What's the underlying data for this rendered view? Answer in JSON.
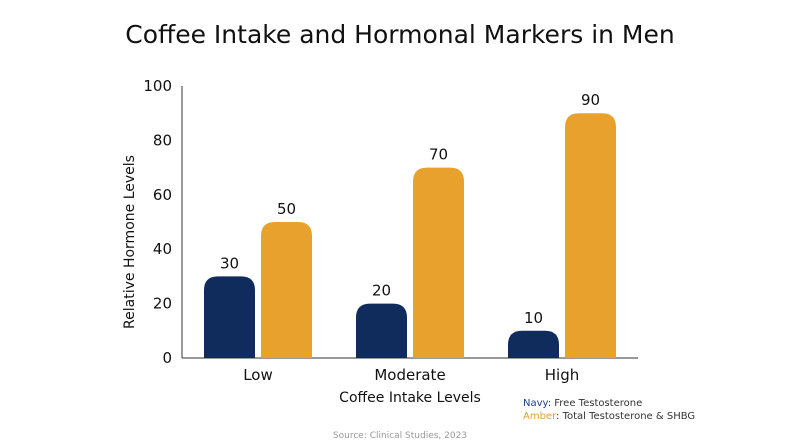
{
  "chart_data": {
    "type": "bar",
    "title": "Coffee Intake and Hormonal Markers in Men",
    "xlabel": "Coffee Intake Levels",
    "ylabel": "Relative Hormone Levels",
    "categories": [
      "Low",
      "Moderate",
      "High"
    ],
    "ylim": [
      0,
      100
    ],
    "yticks": [
      "0",
      "20",
      "40",
      "60",
      "80",
      "100"
    ],
    "series": [
      {
        "values": [
          30,
          20,
          10
        ],
        "color": "#0f2c5c"
      },
      {
        "values": [
          50,
          70,
          90
        ],
        "color": "#e8a12c"
      }
    ],
    "grid": false
  },
  "legend": {
    "navy_key": "Navy",
    "navy_text": ": Free Testosterone",
    "amber_key": "Amber",
    "amber_text": ": Total Testosterone & SHBG"
  },
  "source": "Source: Clinical Studies, 2023"
}
